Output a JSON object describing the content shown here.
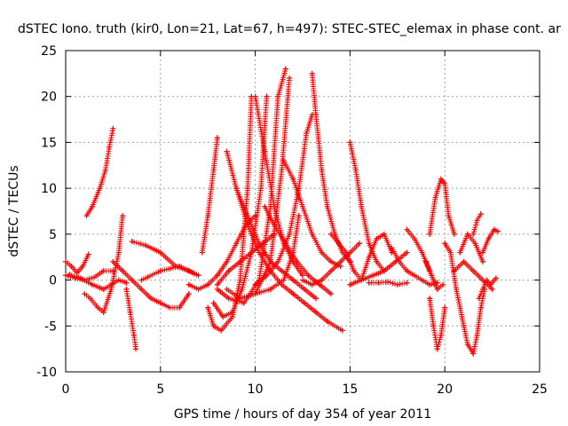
{
  "chart_data": {
    "type": "scatter",
    "title": "dSTEC Iono. truth (kir0, Lon=21, Lat=67, h=497): STEC-STEC_elemax in phase cont. ar",
    "xlabel": "GPS time / hours of day 354 of year 2011",
    "ylabel": "dSTEC  / TECUs",
    "xlim": [
      0,
      25
    ],
    "ylim": [
      -10,
      25
    ],
    "x_ticks": [
      "0",
      "5",
      "10",
      "15",
      "20",
      "25"
    ],
    "y_ticks": [
      "-10",
      "-5",
      "0",
      "5",
      "10",
      "15",
      "20",
      "25"
    ],
    "grid": true,
    "marker": "+",
    "color": "#ff0000",
    "series": [
      {
        "x": [
          0.0,
          0.3,
          0.6,
          0.9,
          1.2
        ],
        "y": [
          2.0,
          1.5,
          0.8,
          1.5,
          2.8
        ]
      },
      {
        "x": [
          0.0,
          0.5,
          1.0,
          1.5,
          2.0,
          2.5
        ],
        "y": [
          0.5,
          0.2,
          0.0,
          0.3,
          1.0,
          1.0
        ]
      },
      {
        "x": [
          0.2,
          0.8,
          1.4,
          2.0,
          2.8,
          3.2
        ],
        "y": [
          0.6,
          0.2,
          -0.5,
          -1.0,
          0.0,
          -0.3
        ]
      },
      {
        "x": [
          1.1,
          1.4,
          1.8,
          2.1,
          2.3,
          2.5
        ],
        "y": [
          7.0,
          8.0,
          10.0,
          12.0,
          14.5,
          16.5
        ]
      },
      {
        "x": [
          1.0,
          1.3,
          1.7,
          2.0,
          2.4,
          2.8,
          3.0
        ],
        "y": [
          -1.5,
          -2.0,
          -3.0,
          -3.5,
          -1.0,
          3.0,
          7.0
        ]
      },
      {
        "x": [
          3.2,
          3.4,
          3.6,
          3.7
        ],
        "y": [
          -1.0,
          -3.5,
          -6.0,
          -7.5
        ]
      },
      {
        "x": [
          2.5,
          3.0,
          3.5,
          4.0,
          4.5,
          5.0,
          5.5,
          6.0,
          6.5
        ],
        "y": [
          2.0,
          1.0,
          0.0,
          -1.0,
          -2.0,
          -2.5,
          -3.0,
          -3.0,
          -1.5
        ]
      },
      {
        "x": [
          3.5,
          4.2,
          5.0,
          5.8,
          6.5,
          7.0
        ],
        "y": [
          4.2,
          3.8,
          3.0,
          1.5,
          1.0,
          0.5
        ]
      },
      {
        "x": [
          4.0,
          5.0,
          6.0,
          7.0
        ],
        "y": [
          0.0,
          1.0,
          1.5,
          0.5
        ]
      },
      {
        "x": [
          7.2,
          7.5,
          7.8,
          8.0
        ],
        "y": [
          3.0,
          7.0,
          12.0,
          15.5
        ]
      },
      {
        "x": [
          6.5,
          7.0,
          7.5,
          8.0,
          8.5,
          9.0,
          9.5,
          10.0
        ],
        "y": [
          -0.5,
          -1.0,
          -0.5,
          0.5,
          2.0,
          4.0,
          6.0,
          7.0
        ]
      },
      {
        "x": [
          7.5,
          7.8,
          8.2,
          8.8,
          9.2,
          9.6,
          9.8
        ],
        "y": [
          -3.0,
          -5.0,
          -5.5,
          -4.0,
          0.0,
          10.0,
          20.0
        ]
      },
      {
        "x": [
          7.8,
          8.3,
          8.8,
          9.3,
          9.8,
          10.3,
          10.6
        ],
        "y": [
          -2.5,
          -4.0,
          -3.5,
          -1.0,
          3.0,
          10.0,
          20.0
        ]
      },
      {
        "x": [
          8.0,
          8.6,
          9.4,
          10.2,
          10.8,
          11.2,
          11.6
        ],
        "y": [
          -1.0,
          -2.0,
          -2.5,
          0.0,
          8.0,
          20.0,
          23.0
        ]
      },
      {
        "x": [
          8.5,
          9.2,
          10.0,
          10.8,
          11.4,
          11.8
        ],
        "y": [
          -1.0,
          -2.0,
          -1.5,
          2.0,
          12.0,
          22.0
        ]
      },
      {
        "x": [
          9.2,
          10.0,
          10.8,
          11.5,
          12.0,
          12.3
        ],
        "y": [
          -2.0,
          -1.5,
          -1.0,
          0.0,
          3.0,
          7.0
        ]
      },
      {
        "x": [
          10.0,
          10.6,
          11.2,
          11.8,
          12.3,
          12.7,
          13.0
        ],
        "y": [
          -0.5,
          0.5,
          2.0,
          5.0,
          10.0,
          16.0,
          18.0
        ]
      },
      {
        "x": [
          8.0,
          8.6,
          9.2,
          9.8,
          10.4,
          11.0
        ],
        "y": [
          -0.5,
          1.0,
          2.0,
          3.0,
          4.0,
          5.0
        ]
      },
      {
        "x": [
          8.5,
          9.0,
          9.6,
          10.2,
          10.8,
          11.4,
          12.0,
          12.6,
          13.2,
          13.8,
          14.6
        ],
        "y": [
          14.0,
          10.0,
          6.0,
          3.0,
          1.0,
          -0.5,
          -1.5,
          -2.5,
          -3.5,
          -4.5,
          -5.5
        ]
      },
      {
        "x": [
          9.0,
          9.6,
          10.2,
          10.8,
          11.4,
          12.0,
          12.6,
          13.2
        ],
        "y": [
          10.0,
          7.0,
          4.0,
          2.0,
          1.0,
          0.0,
          -1.0,
          -2.0
        ]
      },
      {
        "x": [
          10.5,
          11.0,
          11.6,
          12.2,
          12.8,
          13.4,
          14.0
        ],
        "y": [
          8.0,
          6.0,
          4.0,
          2.0,
          0.5,
          -0.5,
          -1.5
        ]
      },
      {
        "x": [
          10.0,
          10.5,
          11.0,
          11.5,
          12.0,
          12.5
        ],
        "y": [
          20.0,
          14.0,
          8.0,
          4.0,
          2.0,
          0.5
        ]
      },
      {
        "x": [
          11.5,
          12.0,
          12.5,
          13.0,
          13.5,
          14.0,
          14.5
        ],
        "y": [
          13.0,
          11.0,
          8.0,
          5.0,
          3.0,
          2.0,
          1.5
        ]
      },
      {
        "x": [
          13.0,
          13.2,
          13.5,
          13.8,
          14.2,
          14.6,
          15.0
        ],
        "y": [
          22.5,
          18.0,
          12.0,
          8.0,
          5.0,
          3.0,
          2.0
        ]
      },
      {
        "x": [
          12.5,
          13.0,
          13.5,
          14.0,
          14.5,
          15.0,
          15.5
        ],
        "y": [
          0.0,
          -0.5,
          0.0,
          1.0,
          2.0,
          3.0,
          4.0
        ]
      },
      {
        "x": [
          14.0,
          14.4,
          14.8,
          15.2,
          15.6,
          16.0,
          16.4,
          16.8,
          17.2
        ],
        "y": [
          5.0,
          4.0,
          3.0,
          1.0,
          0.0,
          2.5,
          4.5,
          5.0,
          3.0
        ]
      },
      {
        "x": [
          15.0,
          15.3,
          15.6,
          16.0,
          16.4,
          16.8
        ],
        "y": [
          15.0,
          12.0,
          8.0,
          4.0,
          2.0,
          1.0
        ]
      },
      {
        "x": [
          15.0,
          15.6,
          16.2,
          16.8,
          17.4,
          18.0
        ],
        "y": [
          -0.5,
          0.0,
          0.5,
          1.0,
          2.0,
          3.0
        ]
      },
      {
        "x": [
          16.0,
          16.5,
          17.0,
          17.5,
          18.0
        ],
        "y": [
          -0.3,
          -0.3,
          -0.2,
          -0.5,
          -0.3
        ]
      },
      {
        "x": [
          17.2,
          17.6,
          18.0,
          18.4,
          18.8,
          19.2,
          19.6
        ],
        "y": [
          3.5,
          2.0,
          1.0,
          0.5,
          0.0,
          -0.5,
          -0.3
        ]
      },
      {
        "x": [
          18.0,
          18.4,
          18.8,
          19.2
        ],
        "y": [
          5.5,
          4.5,
          3.0,
          1.0
        ]
      },
      {
        "x": [
          19.2,
          19.4,
          19.6,
          19.8,
          20.0
        ],
        "y": [
          -2.0,
          -5.0,
          -7.5,
          -6.0,
          -3.0
        ]
      },
      {
        "x": [
          19.2,
          19.5,
          19.8,
          20.0,
          20.2,
          20.5
        ],
        "y": [
          5.0,
          9.0,
          11.0,
          10.5,
          7.0,
          5.0
        ]
      },
      {
        "x": [
          19.0,
          19.3,
          19.6,
          19.9
        ],
        "y": [
          2.0,
          0.5,
          -1.0,
          -0.5
        ]
      },
      {
        "x": [
          20.0,
          20.3,
          20.6,
          20.9,
          21.2,
          21.5
        ],
        "y": [
          4.0,
          3.0,
          -1.0,
          -4.0,
          -7.0,
          -8.0
        ]
      },
      {
        "x": [
          21.5,
          21.7,
          21.9,
          22.1
        ],
        "y": [
          -8.0,
          -6.0,
          -3.0,
          -1.0
        ]
      },
      {
        "x": [
          21.8,
          22.0,
          22.2,
          22.4,
          22.7
        ],
        "y": [
          -2.0,
          -1.0,
          0.0,
          -0.5,
          0.2
        ]
      },
      {
        "x": [
          22.0,
          22.3,
          22.6,
          22.8
        ],
        "y": [
          3.0,
          4.5,
          5.5,
          5.3
        ]
      },
      {
        "x": [
          21.5,
          21.7,
          21.9
        ],
        "y": [
          5.0,
          6.5,
          7.2
        ]
      },
      {
        "x": [
          20.5,
          21.0,
          21.5,
          22.0,
          22.5
        ],
        "y": [
          1.0,
          2.0,
          1.0,
          0.0,
          -1.0
        ]
      },
      {
        "x": [
          20.8,
          21.2,
          21.6,
          22.0
        ],
        "y": [
          3.0,
          5.0,
          4.0,
          2.0
        ]
      }
    ]
  }
}
